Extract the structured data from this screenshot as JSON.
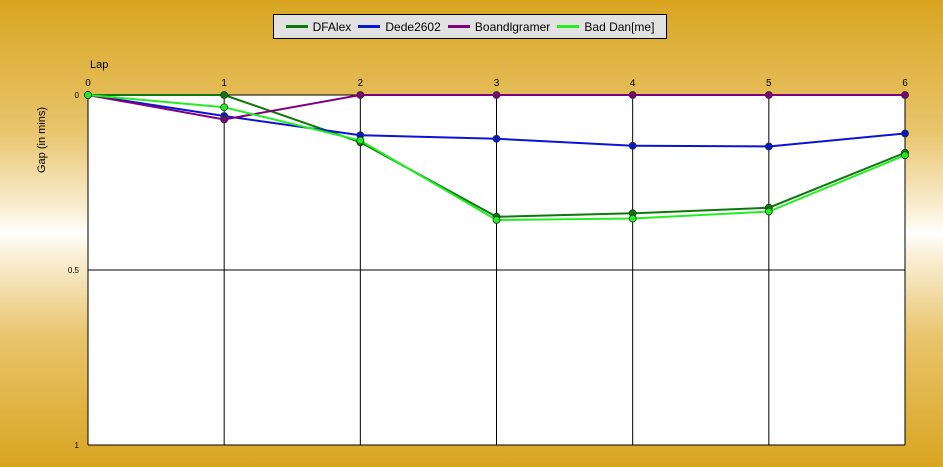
{
  "chart_data": {
    "type": "line",
    "title": "",
    "xlabel": "Lap",
    "ylabel": "Gap (in mins)",
    "x": [
      0,
      1,
      2,
      3,
      4,
      5,
      6
    ],
    "x_tick_labels": [
      "0",
      "1",
      "2",
      "3",
      "4",
      "5",
      "6"
    ],
    "y_tick_labels": [
      "0",
      "0.5",
      "1"
    ],
    "y_ticks": [
      0,
      0.5,
      1
    ],
    "ylim": [
      0,
      1
    ],
    "y_inverted": true,
    "xlim": [
      0,
      6
    ],
    "grid": true,
    "legend_position": "top-center",
    "series": [
      {
        "name": "DFAlex",
        "color": "#0b7a0b",
        "values": [
          0,
          0,
          0.135,
          0.348,
          0.338,
          0.322,
          0.165
        ]
      },
      {
        "name": "Dede2602",
        "color": "#0a14d4",
        "values": [
          0,
          0.06,
          0.115,
          0.125,
          0.145,
          0.147,
          0.11
        ]
      },
      {
        "name": "Boandlgramer",
        "color": "#800080",
        "values": [
          0,
          0.07,
          0,
          0,
          0,
          0,
          0
        ]
      },
      {
        "name": "Bad Dan[me]",
        "color": "#22ee22",
        "values": [
          0,
          0.035,
          0.13,
          0.357,
          0.353,
          0.333,
          0.172
        ]
      }
    ]
  }
}
